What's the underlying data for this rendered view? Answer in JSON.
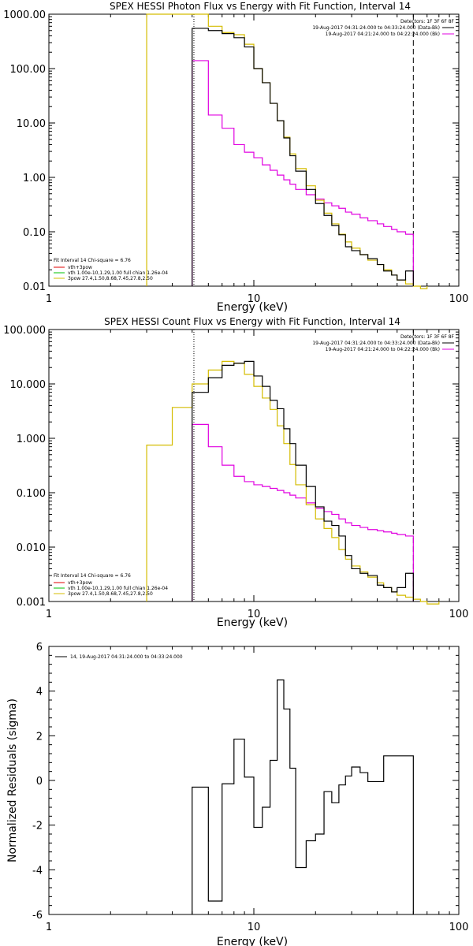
{
  "colors": {
    "black": "#000000",
    "magenta": "#e000e0",
    "yellow": "#d4bc00",
    "green": "#00c000",
    "red": "#e00000"
  },
  "panel1": {
    "title": "SPEX HESSI Photon Flux vs Energy with Fit Function, Interval 14",
    "xlabel": "Energy (keV)",
    "xticks": [
      "1",
      "10",
      "100"
    ],
    "yticks": [
      "1000.00",
      "100.00",
      "10.00",
      "1.00",
      "0.10",
      "0.01"
    ],
    "legend_right": [
      "Detectors: 1F 3F 6F 8F",
      "19-Aug-2017 04:31:24.000 to 04:33:24.000 (Data-Bk)",
      "19-Aug-2017 04:21:24.000 to 04:22:24.000 (Bk)"
    ],
    "legend_left": [
      "Fit Interval 14   Chi-square = 6.76",
      "vth+3pow",
      "vth 1.00e-10,1.29,1.00   full chian 1.26e-04",
      "3pow 27.4,1.50,8.68,7.45,27.8,2.50"
    ]
  },
  "panel2": {
    "title": "SPEX HESSI Count Flux vs Energy with Fit Function, Interval 14",
    "xlabel": "Energy (keV)",
    "xticks": [
      "1",
      "10",
      "100"
    ],
    "yticks": [
      "100.000",
      "10.000",
      "1.000",
      "0.100",
      "0.010",
      "0.001"
    ],
    "legend_right": [
      "Detectors: 1F 3F 6F 8F",
      "19-Aug-2017 04:31:24.000 to 04:33:24.000 (Data-Bk)",
      "19-Aug-2017 04:21:24.000 to 04:22:24.000 (Bk)"
    ],
    "legend_left": [
      "Fit Interval 14   Chi-square = 6.76",
      "vth+3pow",
      "vth 1.00e-10,1.29,1.00   full chian 1.26e-04",
      "3pow 27.4,1.50,8.68,7.45,27.8,2.50"
    ]
  },
  "panel3": {
    "ylabel": "Normalized Residuals (sigma)",
    "xlabel": "Energy (keV)",
    "xticks": [
      "1",
      "10",
      "100"
    ],
    "yticks": [
      "6",
      "4",
      "2",
      "0",
      "-2",
      "-4",
      "-6"
    ],
    "legend": "14, 19-Aug-2017 04:31:24.000 to 04:33:24.000"
  },
  "chart_data": [
    {
      "type": "line",
      "title": "SPEX HESSI Photon Flux vs Energy with Fit Function, Interval 14",
      "xlabel": "Energy (keV)",
      "xscale": "log",
      "yscale": "log",
      "xlim": [
        1,
        100
      ],
      "ylim": [
        0.01,
        1000
      ],
      "edges": [
        5,
        6,
        7,
        8,
        9,
        10,
        11,
        12,
        13,
        14,
        15,
        16,
        18,
        20,
        22,
        24,
        26,
        28,
        30,
        33,
        36,
        40,
        43,
        47,
        50,
        55,
        60
      ],
      "series": [
        {
          "name": "Data-Bk",
          "color": "#000000",
          "values": [
            550,
            500,
            440,
            370,
            250,
            100,
            55,
            23,
            11,
            5.3,
            2.5,
            1.3,
            0.6,
            0.33,
            0.2,
            0.13,
            0.088,
            0.053,
            0.045,
            0.038,
            0.032,
            0.025,
            0.019,
            0.016,
            0.013,
            0.019
          ]
        },
        {
          "name": "Bk",
          "color": "#e000e0",
          "values": [
            140,
            14,
            8,
            4,
            2.9,
            2.3,
            1.7,
            1.35,
            1.1,
            0.9,
            0.75,
            0.6,
            0.48,
            0.4,
            0.34,
            0.3,
            0.27,
            0.23,
            0.21,
            0.18,
            0.16,
            0.14,
            0.125,
            0.11,
            0.1,
            0.09
          ]
        },
        {
          "name": "Fit",
          "color": "#d4bc00",
          "edges": [
            3,
            5,
            6,
            7,
            8,
            9,
            10,
            11,
            12,
            13,
            14,
            15,
            16,
            18,
            20,
            22,
            24,
            26,
            28,
            30,
            33,
            36,
            40,
            43,
            47,
            50,
            55,
            60,
            65,
            70
          ],
          "values": [
            1000,
            1000,
            600,
            460,
            420,
            280,
            100,
            55,
            23,
            11,
            5.5,
            2.7,
            1.45,
            0.7,
            0.38,
            0.22,
            0.14,
            0.09,
            0.065,
            0.05,
            0.038,
            0.03,
            0.025,
            0.02,
            0.016,
            0.013,
            0.011,
            0.01,
            0.009
          ]
        }
      ]
    },
    {
      "type": "line",
      "title": "SPEX HESSI Count Flux vs Energy with Fit Function, Interval 14",
      "xlabel": "Energy (keV)",
      "xscale": "log",
      "yscale": "log",
      "xlim": [
        1,
        100
      ],
      "ylim": [
        0.001,
        100
      ],
      "edges": [
        5,
        6,
        7,
        8,
        9,
        10,
        11,
        12,
        13,
        14,
        15,
        16,
        18,
        20,
        22,
        24,
        26,
        28,
        30,
        33,
        36,
        40,
        43,
        47,
        50,
        55,
        60
      ],
      "series": [
        {
          "name": "Data-Bk",
          "color": "#000000",
          "values": [
            7,
            13,
            22,
            24,
            26,
            14,
            9,
            5,
            3.5,
            1.5,
            0.8,
            0.32,
            0.13,
            0.055,
            0.03,
            0.025,
            0.016,
            0.007,
            0.004,
            0.0033,
            0.003,
            0.002,
            0.0018,
            0.0015,
            0.0018,
            0.0033
          ]
        },
        {
          "name": "Bk",
          "color": "#e000e0",
          "values": [
            1.8,
            0.7,
            0.32,
            0.2,
            0.16,
            0.14,
            0.13,
            0.12,
            0.11,
            0.1,
            0.09,
            0.08,
            0.065,
            0.052,
            0.045,
            0.04,
            0.033,
            0.028,
            0.025,
            0.023,
            0.021,
            0.02,
            0.019,
            0.018,
            0.017,
            0.016
          ]
        },
        {
          "name": "Fit",
          "color": "#d4bc00",
          "edges": [
            3,
            4,
            5,
            6,
            7,
            8,
            9,
            10,
            11,
            12,
            13,
            14,
            15,
            16,
            18,
            20,
            22,
            24,
            26,
            28,
            30,
            33,
            36,
            40,
            43,
            47,
            50,
            55,
            60,
            65,
            70,
            80
          ],
          "values": [
            0.75,
            3.7,
            10,
            18,
            26,
            24,
            15,
            9,
            5.5,
            3.4,
            1.7,
            0.8,
            0.33,
            0.14,
            0.06,
            0.033,
            0.022,
            0.015,
            0.009,
            0.006,
            0.0045,
            0.0035,
            0.0028,
            0.0022,
            0.0018,
            0.0015,
            0.0013,
            0.0012,
            0.0011,
            0.001,
            0.0009
          ]
        }
      ]
    },
    {
      "type": "line",
      "title": "",
      "xlabel": "Energy (keV)",
      "ylabel": "Normalized Residuals (sigma)",
      "xscale": "log",
      "xlim": [
        1,
        100
      ],
      "ylim": [
        -6,
        6
      ],
      "edges": [
        5,
        6,
        7,
        8,
        9,
        10,
        11,
        12,
        13,
        14,
        15,
        16,
        18,
        20,
        22,
        24,
        26,
        28,
        30,
        33,
        36,
        40,
        43,
        47,
        50,
        55,
        60
      ],
      "series": [
        {
          "name": "14, 19-Aug-2017 04:31:24.000 to 04:33:24.000",
          "color": "#000000",
          "values": [
            -0.3,
            -5.4,
            -0.15,
            1.85,
            0.15,
            -2.1,
            -1.2,
            0.9,
            4.5,
            3.2,
            0.55,
            -3.9,
            -2.7,
            -2.4,
            -0.5,
            -1.0,
            -0.2,
            0.2,
            0.6,
            0.35,
            -0.05,
            -0.05,
            1.1,
            1.1,
            1.1,
            1.1
          ]
        }
      ]
    }
  ]
}
